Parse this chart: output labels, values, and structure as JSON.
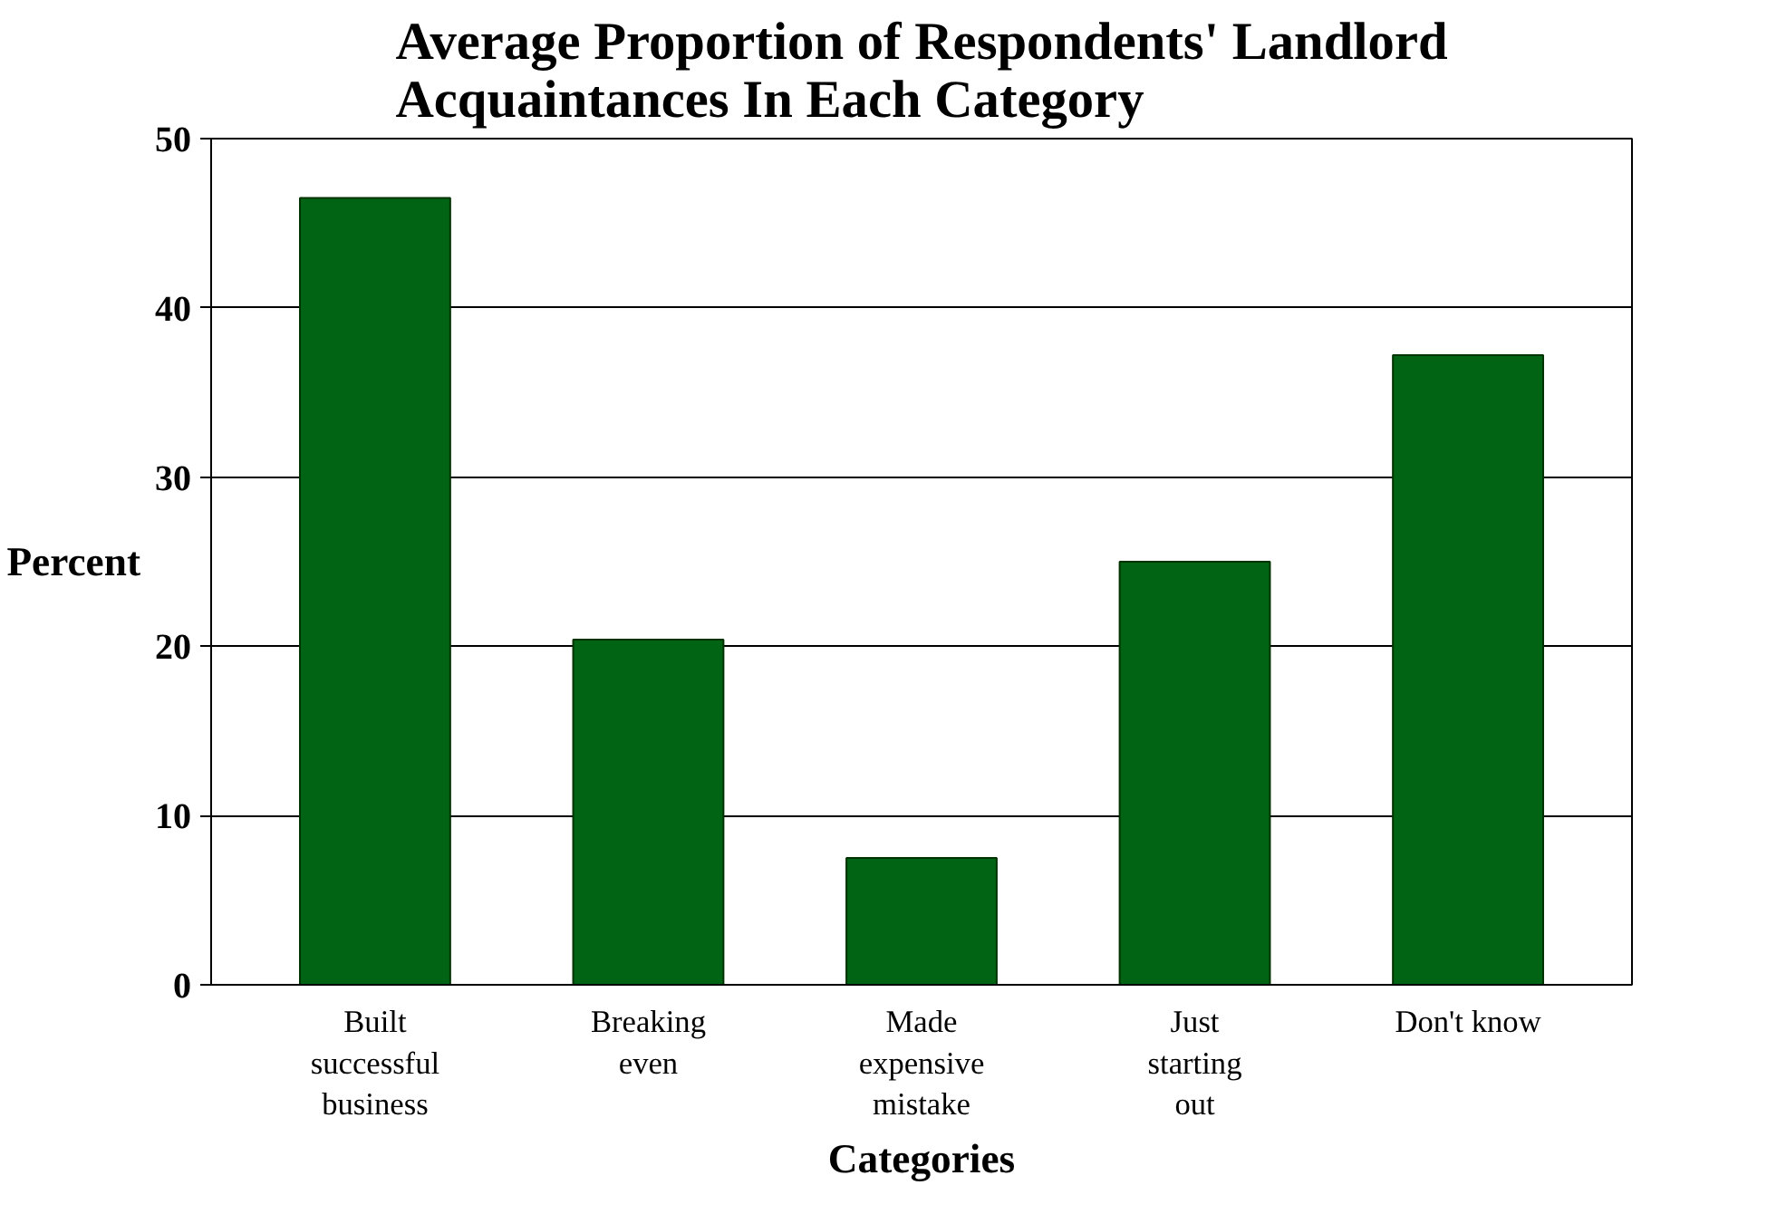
{
  "chart_data": {
    "type": "bar",
    "title": "Average Proportion of Respondents' Landlord Acquaintances In Each Category",
    "categories": [
      "Built successful business",
      "Breaking even",
      "Made expensive mistake",
      "Just starting out",
      "Don't know"
    ],
    "values": [
      46.5,
      20.4,
      7.5,
      25,
      37.2
    ],
    "color": "#006414",
    "xlabel": "Categories",
    "ylabel": "Percent",
    "ylim": [
      0,
      50
    ],
    "yticks": [
      0,
      10,
      20,
      30,
      40,
      50
    ],
    "grid": "y"
  }
}
